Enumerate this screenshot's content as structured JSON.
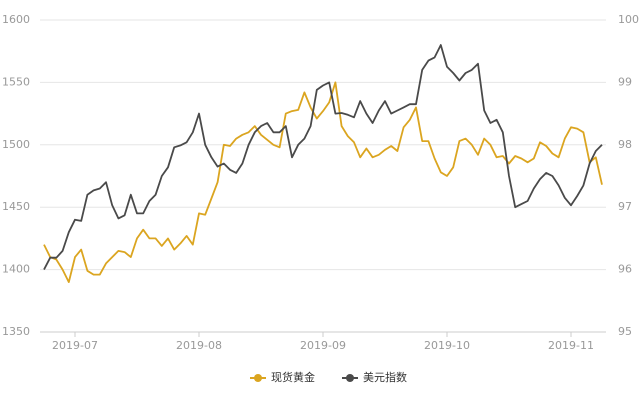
{
  "chart_data": {
    "type": "line",
    "categories": [
      null,
      null,
      null,
      null,
      null,
      "2019-07",
      null,
      null,
      null,
      null,
      null,
      null,
      null,
      null,
      null,
      null,
      null,
      null,
      null,
      null,
      null,
      null,
      null,
      null,
      null,
      "2019-08",
      null,
      null,
      null,
      null,
      null,
      null,
      null,
      null,
      null,
      null,
      null,
      null,
      null,
      null,
      null,
      null,
      null,
      null,
      null,
      "2019-09",
      null,
      null,
      null,
      null,
      null,
      null,
      null,
      null,
      null,
      null,
      null,
      null,
      null,
      null,
      null,
      null,
      null,
      null,
      null,
      "2019-10",
      null,
      null,
      null,
      null,
      null,
      null,
      null,
      null,
      null,
      null,
      null,
      null,
      null,
      null,
      null,
      null,
      null,
      null,
      null,
      "2019-11",
      null,
      null,
      null,
      null,
      null
    ],
    "series": [
      {
        "name": "现货黄金",
        "color": "#dba520",
        "values": [
          1420,
          1410,
          1408,
          1400,
          1390,
          1410,
          1416,
          1399,
          1396,
          1396,
          1405,
          1410,
          1415,
          1414,
          1410,
          1425,
          1432,
          1425,
          1425,
          1419,
          1425,
          1416,
          1421,
          1427,
          1420,
          1445,
          1444,
          1457,
          1470,
          1500,
          1499,
          1505,
          1508,
          1510,
          1515,
          1508,
          1504,
          1500,
          1498,
          1525,
          1527,
          1528,
          1542,
          1530,
          1521,
          1527,
          1534,
          1550,
          1515,
          1507,
          1502,
          1490,
          1497,
          1490,
          1492,
          1496,
          1499,
          1495,
          1514,
          1520,
          1530,
          1503,
          1503,
          1489,
          1478,
          1475,
          1482,
          1503,
          1505,
          1500,
          1492,
          1505,
          1500,
          1490,
          1491,
          1485,
          1491,
          1489,
          1486,
          1489,
          1502,
          1499,
          1493,
          1490,
          1505,
          1514,
          1513,
          1510,
          1486,
          1490,
          1468
        ]
      },
      {
        "name": "美元指数",
        "color": "#4a4a4a",
        "axis": "y2",
        "values": [
          96.0,
          96.19,
          96.19,
          96.3,
          96.6,
          96.8,
          96.78,
          97.2,
          97.27,
          97.3,
          97.4,
          97.03,
          96.82,
          96.87,
          97.2,
          96.9,
          96.9,
          97.1,
          97.2,
          97.5,
          97.64,
          97.96,
          97.99,
          98.04,
          98.2,
          98.5,
          98.0,
          97.8,
          97.65,
          97.7,
          97.6,
          97.55,
          97.7,
          98.0,
          98.2,
          98.3,
          98.35,
          98.2,
          98.2,
          98.3,
          97.8,
          98.0,
          98.1,
          98.3,
          98.88,
          98.95,
          99.0,
          98.5,
          98.51,
          98.48,
          98.44,
          98.7,
          98.5,
          98.35,
          98.55,
          98.7,
          98.5,
          98.55,
          98.6,
          98.65,
          98.65,
          99.2,
          99.35,
          99.4,
          99.6,
          99.25,
          99.15,
          99.03,
          99.15,
          99.2,
          99.3,
          98.55,
          98.35,
          98.4,
          98.2,
          97.5,
          97.0,
          97.05,
          97.1,
          97.3,
          97.45,
          97.55,
          97.5,
          97.35,
          97.15,
          97.03,
          97.18,
          97.35,
          97.7,
          97.9,
          98.0
        ]
      }
    ],
    "ylim": [
      1350,
      1600
    ],
    "yticks": [
      1350,
      1400,
      1450,
      1500,
      1550,
      1600
    ],
    "y2lim": [
      95,
      100
    ],
    "y2ticks": [
      95,
      96,
      97,
      98,
      99,
      100
    ],
    "grid": true,
    "legend": "bottom"
  }
}
